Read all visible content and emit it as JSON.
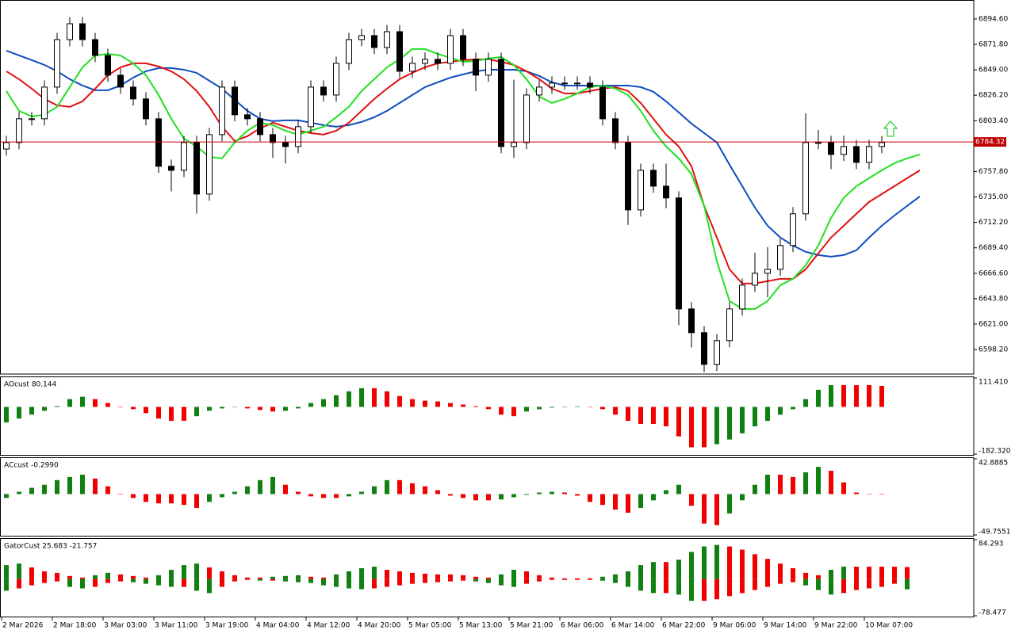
{
  "chart_data": [
    {
      "type": "candlestick",
      "categories": [
        "2 Mar 2026",
        null,
        null,
        null,
        "2 Mar 18:00",
        null,
        null,
        null,
        "3 Mar 03:00",
        null,
        null,
        null,
        "3 Mar 11:00",
        null,
        null,
        null,
        "3 Mar 19:00",
        null,
        null,
        null,
        "4 Mar 04:00",
        null,
        null,
        null,
        "4 Mar 12:00",
        null,
        null,
        null,
        "4 Mar 20:00",
        null,
        null,
        null,
        "5 Mar 05:00",
        null,
        null,
        null,
        "5 Mar 13:00",
        null,
        null,
        null,
        "5 Mar 21:00",
        null,
        null,
        null,
        "6 Mar 06:00",
        null,
        null,
        null,
        "6 Mar 14:00",
        null,
        null,
        null,
        "6 Mar 22:00",
        null,
        null,
        null,
        "9 Mar 06:00",
        null,
        null,
        null,
        "9 Mar 14:00",
        null,
        null,
        null,
        "9 Mar 22:00",
        null,
        null,
        null,
        "10 Mar 07:00",
        null,
        null,
        null,
        null
      ],
      "open": [
        6778.0,
        6783.8,
        6805.1,
        6805.1,
        6833.5,
        6876.1,
        6890.3,
        6876.1,
        6861.9,
        6844.2,
        6833.5,
        6822.9,
        6805.1,
        6762.5,
        6758.9,
        6783.8,
        6737.6,
        6790.9,
        6833.5,
        6808.7,
        6805.1,
        6790.9,
        6783.8,
        6780.2,
        6798.0,
        6833.5,
        6826.4,
        6854.8,
        6876.1,
        6879.7,
        6869.0,
        6883.2,
        6847.7,
        6854.8,
        6858.4,
        6854.8,
        6879.7,
        6858.4,
        6844.2,
        6858.4,
        6780.2,
        6783.8,
        6826.4,
        6833.5,
        6837.1,
        6837.1,
        6837.1,
        6833.5,
        6805.1,
        6783.8,
        6723.4,
        6758.9,
        6744.7,
        6734.1,
        6634.6,
        6613.3,
        6584.9,
        6606.2,
        6634.6,
        6655.9,
        6666.6,
        6670.1,
        6691.5,
        6719.9,
        6783.8,
        6783.8,
        6773.1,
        6780.2,
        6766.0,
        6780.2,
        null,
        null,
        null
      ],
      "high": [
        6789.8,
        6811.1,
        6811.1,
        6839.5,
        6882.1,
        6896.3,
        6896.3,
        6882.1,
        6867.9,
        6850.2,
        6839.5,
        6828.9,
        6811.1,
        6768.5,
        6789.8,
        6789.8,
        6796.9,
        6839.5,
        6839.5,
        6814.7,
        6811.1,
        6796.9,
        6789.8,
        6804.0,
        6839.5,
        6839.5,
        6860.8,
        6882.1,
        6885.7,
        6885.7,
        6889.2,
        6889.2,
        6860.8,
        6864.4,
        6864.4,
        6885.7,
        6885.7,
        6864.4,
        6864.4,
        6864.4,
        6840.0,
        6832.4,
        6839.5,
        6843.1,
        6843.1,
        6843.1,
        6843.1,
        6839.5,
        6811.1,
        6789.8,
        6764.9,
        6764.9,
        6764.9,
        6740.1,
        6640.6,
        6619.3,
        6612.2,
        6640.6,
        6661.9,
        6685.0,
        6690.0,
        6697.5,
        6725.9,
        6810.0,
        6795.0,
        6789.8,
        6790.0,
        6786.2,
        6786.2,
        6789.8,
        null,
        null,
        null
      ],
      "low": [
        6772.0,
        6777.8,
        6799.1,
        6799.1,
        6827.5,
        6870.1,
        6870.1,
        6855.9,
        6838.2,
        6827.5,
        6816.9,
        6799.1,
        6756.5,
        6740.0,
        6752.9,
        6720.0,
        6731.6,
        6784.9,
        6802.7,
        6799.1,
        6784.9,
        6770.0,
        6765.0,
        6774.2,
        6792.0,
        6820.4,
        6820.4,
        6848.8,
        6870.1,
        6863.0,
        6863.0,
        6841.7,
        6841.7,
        6848.8,
        6848.8,
        6848.8,
        6852.4,
        6830.0,
        6838.2,
        6774.2,
        6770.0,
        6777.8,
        6820.4,
        6827.5,
        6831.1,
        6831.1,
        6827.5,
        6799.1,
        6777.8,
        6710.0,
        6717.4,
        6738.7,
        6725.0,
        6620.0,
        6600.0,
        6578.0,
        6578.9,
        6600.2,
        6628.6,
        6649.9,
        6645.0,
        6664.1,
        6685.5,
        6713.9,
        6777.8,
        6760.0,
        6767.1,
        6760.0,
        6760.0,
        6774.2,
        null,
        null,
        null
      ],
      "close": [
        6783.8,
        6805.1,
        6805.1,
        6833.5,
        6876.1,
        6890.3,
        6876.1,
        6861.9,
        6844.2,
        6833.5,
        6822.9,
        6805.1,
        6762.5,
        6758.9,
        6783.8,
        6737.6,
        6790.9,
        6833.5,
        6808.7,
        6805.1,
        6790.9,
        6783.8,
        6780.2,
        6798.0,
        6833.5,
        6826.4,
        6854.8,
        6876.1,
        6879.7,
        6869.0,
        6883.2,
        6847.7,
        6854.8,
        6858.4,
        6854.8,
        6879.7,
        6858.4,
        6844.2,
        6858.4,
        6780.2,
        6783.8,
        6826.4,
        6833.5,
        6837.1,
        6837.1,
        6837.1,
        6833.5,
        6805.1,
        6783.8,
        6723.4,
        6758.9,
        6744.7,
        6734.1,
        6634.6,
        6613.3,
        6584.9,
        6606.2,
        6634.6,
        6655.9,
        6666.6,
        6670.1,
        6691.5,
        6719.9,
        6783.8,
        6783.8,
        6773.1,
        6780.2,
        6766.0,
        6780.2,
        6783.8,
        null,
        null,
        null
      ],
      "up_color": "#ffffff",
      "down_color": "#000000",
      "series": [
        {
          "color": "#0f4dbe",
          "values": [
            6866.2,
            6861.9,
            6857.7,
            6853.4,
            6847.7,
            6840.6,
            6834.9,
            6830.7,
            6830.7,
            6834.9,
            6842.0,
            6847.7,
            6850.6,
            6850.6,
            6849.1,
            6846.3,
            6839.2,
            6832.1,
            6822.1,
            6812.2,
            6805.1,
            6803.0,
            6803.7,
            6803.7,
            6801.6,
            6799.4,
            6798.0,
            6799.4,
            6802.3,
            6806.5,
            6812.2,
            6819.3,
            6826.4,
            6833.5,
            6837.8,
            6842.0,
            6844.9,
            6847.7,
            6849.1,
            6849.1,
            6849.1,
            6847.7,
            6843.5,
            6837.8,
            6834.9,
            6834.9,
            6834.9,
            6834.9,
            6834.9,
            6834.9,
            6833.5,
            6829.3,
            6820.7,
            6810.8,
            6800.8,
            6792.3,
            6783.8,
            6763.9,
            6744.7,
            6725.5,
            6709.2,
            6698.6,
            6691.5,
            6685.8,
            6682.9,
            6681.5,
            6682.9,
            6687.2,
            6698.6,
            6709.2,
            6718.4,
            6727.0,
            6735.5
          ]
        },
        {
          "color": "#e01010",
          "values": [
            6847.7,
            6840.6,
            6832.1,
            6822.9,
            6817.2,
            6815.8,
            6820.7,
            6832.1,
            6844.2,
            6851.3,
            6854.8,
            6854.8,
            6852.0,
            6847.7,
            6840.6,
            6830.0,
            6815.8,
            6798.0,
            6785.2,
            6789.5,
            6796.6,
            6801.6,
            6798.0,
            6794.4,
            6792.3,
            6790.9,
            6794.4,
            6801.6,
            6812.2,
            6822.9,
            6832.1,
            6840.6,
            6846.3,
            6851.3,
            6854.8,
            6856.2,
            6857.7,
            6858.4,
            6858.4,
            6856.2,
            6853.4,
            6847.7,
            6840.6,
            6832.1,
            6827.8,
            6827.8,
            6830.0,
            6832.1,
            6833.5,
            6830.0,
            6819.3,
            6805.1,
            6790.9,
            6780.2,
            6762.5,
            6727.0,
            6698.6,
            6670.1,
            6657.4,
            6657.4,
            6659.5,
            6661.6,
            6661.6,
            6670.1,
            6684.4,
            6698.6,
            6709.2,
            6719.9,
            6730.5,
            6737.6,
            6744.7,
            6751.8,
            6758.9
          ]
        },
        {
          "color": "#22e022",
          "values": [
            6830.0,
            6812.2,
            6807.2,
            6808.7,
            6815.8,
            6833.5,
            6851.3,
            6861.9,
            6863.3,
            6861.9,
            6854.8,
            6844.2,
            6826.4,
            6805.1,
            6787.3,
            6780.2,
            6771.0,
            6769.6,
            6783.8,
            6794.4,
            6801.6,
            6799.4,
            6794.4,
            6790.9,
            6794.4,
            6798.0,
            6806.5,
            6815.8,
            6830.0,
            6840.6,
            6851.3,
            6858.4,
            6867.6,
            6867.6,
            6863.3,
            6859.8,
            6856.2,
            6857.0,
            6859.1,
            6860.5,
            6853.4,
            6840.6,
            6825.0,
            6819.3,
            6822.9,
            6827.8,
            6833.5,
            6834.9,
            6832.1,
            6826.4,
            6812.2,
            6794.4,
            6780.2,
            6769.6,
            6755.4,
            6727.0,
            6677.2,
            6641.7,
            6634.6,
            6634.6,
            6641.7,
            6655.9,
            6661.6,
            6673.7,
            6691.5,
            6716.3,
            6734.1,
            6744.7,
            6751.8,
            6758.9,
            6765.3,
            6769.6,
            6773.1
          ]
        }
      ],
      "current_price": 6784.32,
      "current_price_color": "#c00000",
      "ylim": [
        6576.2,
        6911.6
      ],
      "yticks": [
        {
          "value": 6894.6,
          "label": "6894.60"
        },
        {
          "value": 6871.8,
          "label": "6871.80"
        },
        {
          "value": 6849,
          "label": "6849.00"
        },
        {
          "value": 6826.2,
          "label": "6826.20"
        },
        {
          "value": 6803.4,
          "label": "6803.40"
        },
        {
          "value": 6757.8,
          "label": "6757.80"
        },
        {
          "value": 6735,
          "label": "6735.00"
        },
        {
          "value": 6712.2,
          "label": "6712.20"
        },
        {
          "value": 6689.4,
          "label": "6689.40"
        },
        {
          "value": 6666.6,
          "label": "6666.60"
        },
        {
          "value": 6643.8,
          "label": "6643.80"
        },
        {
          "value": 6621,
          "label": "6621.00"
        },
        {
          "value": 6598.2,
          "label": "6598.20"
        }
      ]
    },
    {
      "type": "histogram",
      "title": "AOcust 80.144",
      "up_color": "#108010",
      "down_color": "#f00000",
      "values": [
        -60,
        -45,
        -30,
        -15,
        3,
        30,
        39,
        30,
        15,
        1,
        -9,
        -24,
        -45,
        -54,
        -54,
        -36,
        -15,
        -6,
        1,
        -6,
        -12,
        -18,
        -15,
        -6,
        15,
        30,
        45,
        60,
        72,
        72,
        60,
        42,
        30,
        24,
        21,
        15,
        9,
        3,
        -9,
        -30,
        -36,
        -18,
        -9,
        -3,
        1,
        2,
        1,
        -9,
        -30,
        -54,
        -66,
        -66,
        -75,
        -114,
        -156,
        -156,
        -144,
        -126,
        -102,
        -75,
        -54,
        -30,
        -9,
        30,
        66,
        84,
        84,
        84,
        84,
        81,
        null,
        null,
        null
      ],
      "ylim": [
        -182.32,
        111.41
      ],
      "yticks": [
        {
          "value": 111.41,
          "label": "111.410"
        },
        {
          "value": -182.32,
          "label": "-182.320"
        }
      ]
    },
    {
      "type": "histogram",
      "title": "ACcust -0.2990",
      "up_color": "#108010",
      "down_color": "#f00000",
      "values": [
        -4.7,
        2.8,
        7.6,
        11.3,
        17.0,
        20.8,
        23.6,
        18.9,
        9.5,
        0.2,
        -4.7,
        -9.5,
        -11.3,
        -11.3,
        -13.2,
        -17.0,
        -9.5,
        -3.8,
        2.8,
        9.5,
        17.0,
        20.8,
        11.3,
        2.8,
        -2.8,
        -4.7,
        -4.7,
        -2.8,
        2.8,
        9.5,
        17.0,
        17.0,
        13.2,
        9.5,
        4.7,
        -1.9,
        -4.7,
        -7.6,
        -7.6,
        -6.6,
        -3.8,
        -0.9,
        1.9,
        2.8,
        1.9,
        -1.9,
        -9.5,
        -13.2,
        -18.9,
        -22.7,
        -17.0,
        -7.6,
        4.7,
        11.3,
        -14.2,
        -35.9,
        -37.8,
        -23.6,
        -7.6,
        11.3,
        23.6,
        23.6,
        20.8,
        26.5,
        33.1,
        28.4,
        14.2,
        1.9,
        -0.3,
        -0.3,
        null,
        null,
        null
      ],
      "ylim": [
        -49.7551,
        42.8885
      ],
      "yticks": [
        42.8885,
        -49.7551
      ]
    },
    {
      "type": "gator",
      "title": "GatorCust 25.683 -21.757",
      "up_color": "#108010",
      "down_color": "#f00000",
      "upper": [
        29.9,
        33.2,
        24.9,
        16.6,
        13.3,
        6.6,
        3.3,
        8.3,
        13.3,
        10.0,
        6.6,
        3.3,
        8.3,
        19.9,
        29.9,
        33.2,
        24.9,
        16.6,
        8.3,
        3.3,
        3.3,
        5.0,
        6.6,
        8.3,
        5.0,
        3.3,
        10.0,
        16.6,
        23.3,
        26.6,
        19.9,
        16.6,
        13.3,
        11.6,
        10.0,
        10.0,
        8.3,
        5.0,
        3.3,
        10.0,
        19.9,
        16.6,
        8.3,
        3.3,
        1.7,
        1.7,
        1.7,
        5.0,
        10.0,
        16.6,
        29.9,
        36.5,
        36.5,
        41.5,
        58.1,
        69.8,
        73.1,
        69.8,
        63.1,
        53.2,
        43.2,
        33.2,
        23.3,
        13.3,
        8.3,
        19.9,
        26.6,
        26.6,
        26.6,
        26.6,
        26.6,
        25.7,
        null
      ],
      "lower": [
        -24.9,
        -19.9,
        -13.3,
        -8.3,
        -5.0,
        -16.6,
        -19.9,
        -16.6,
        -8.3,
        -5.0,
        -6.6,
        -10.0,
        -13.3,
        -16.6,
        -16.6,
        -24.9,
        -29.9,
        -16.6,
        -5.0,
        -1.7,
        -3.3,
        -3.3,
        -5.0,
        -6.6,
        -8.3,
        -13.3,
        -16.6,
        -19.9,
        -21.6,
        -19.9,
        -16.6,
        -13.3,
        -10.0,
        -8.3,
        -6.6,
        -5.0,
        -3.3,
        -5.0,
        -8.3,
        -13.3,
        -16.6,
        -10.0,
        -5.0,
        -1.7,
        -1.7,
        -1.7,
        -1.7,
        -3.3,
        -8.3,
        -16.6,
        -24.9,
        -29.9,
        -29.9,
        -33.2,
        -46.5,
        -46.5,
        -43.2,
        -36.5,
        -29.9,
        -23.3,
        -16.6,
        -10.0,
        -6.6,
        -13.3,
        -23.3,
        -33.2,
        -29.9,
        -23.3,
        -19.9,
        -16.6,
        -10.0,
        -21.8,
        null
      ],
      "ylim": [
        -78.477,
        84.293
      ],
      "yticks": [
        84.293,
        -78.477
      ]
    }
  ]
}
